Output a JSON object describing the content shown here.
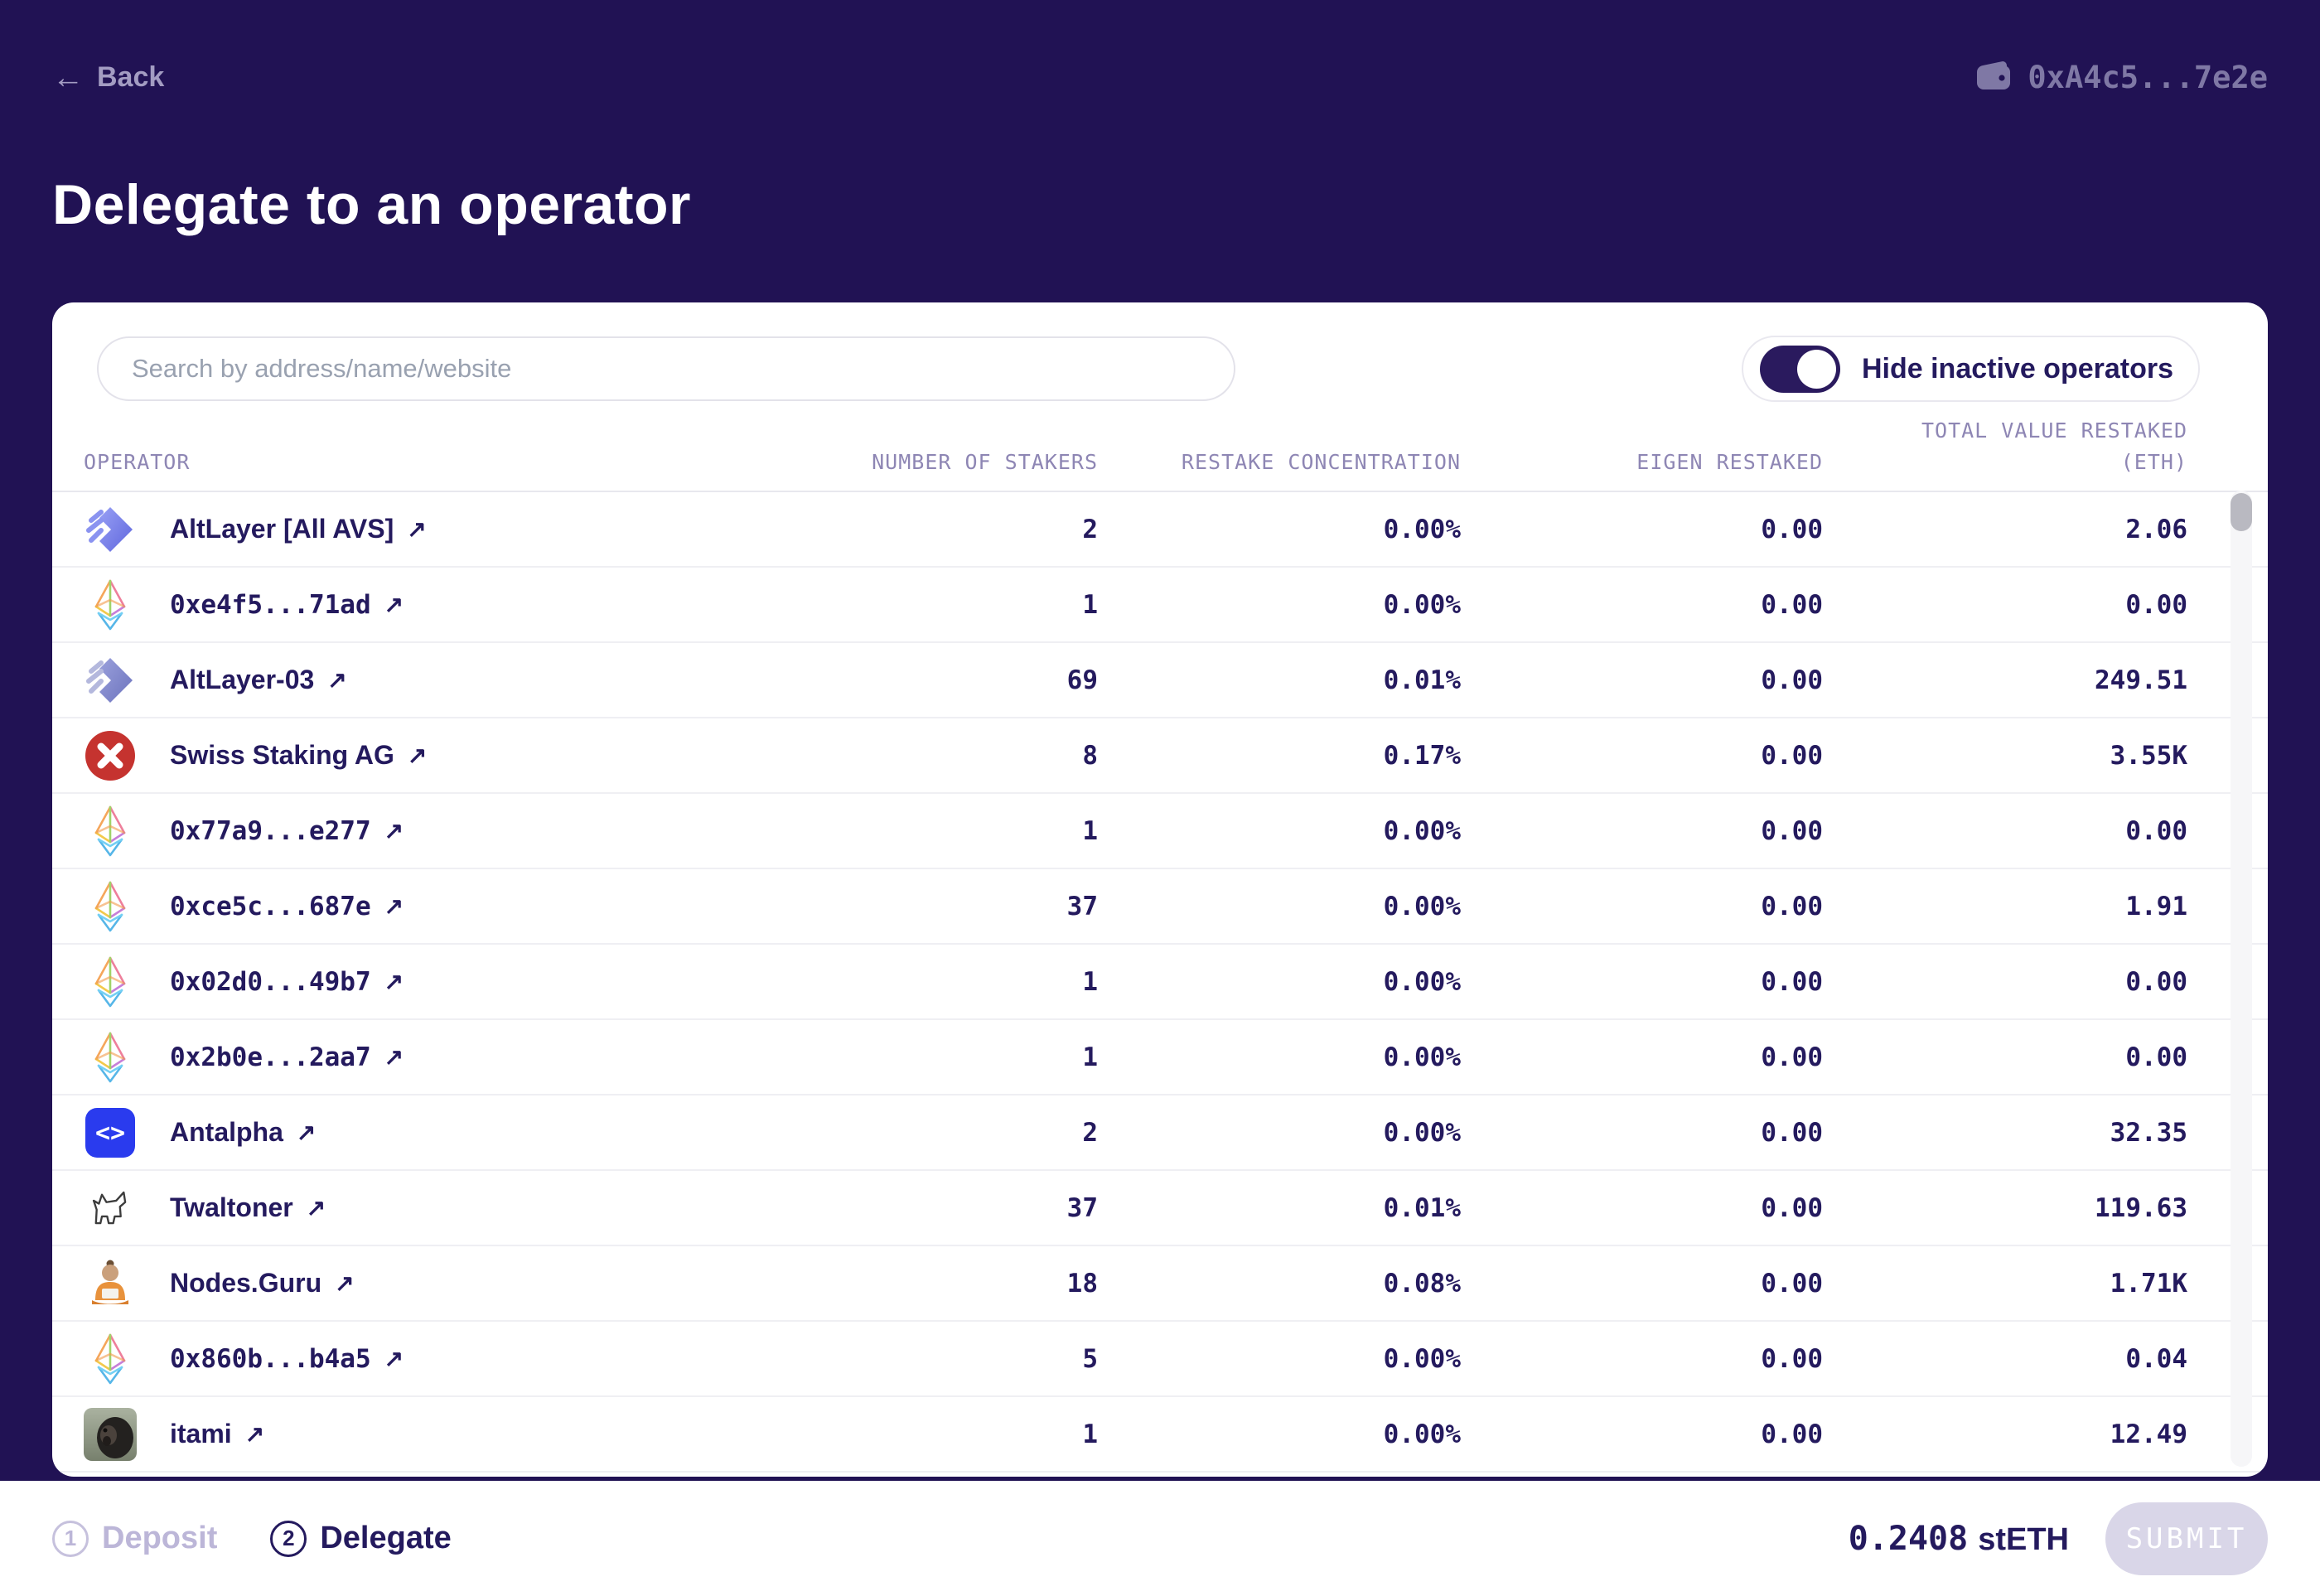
{
  "header": {
    "back_label": "Back",
    "wallet_address": "0xA4c5...7e2e"
  },
  "page_title": "Delegate to an operator",
  "panel": {
    "search_placeholder": "Search by address/name/website",
    "toggle_label": "Hide inactive operators",
    "toggle_on": true
  },
  "icons": {
    "external_link": "↗",
    "back_arrow": "←"
  },
  "table": {
    "columns": [
      {
        "label": "OPERATOR"
      },
      {
        "label": "NUMBER OF STAKERS"
      },
      {
        "label": "RESTAKE CONCENTRATION"
      },
      {
        "label": "EIGEN RESTAKED"
      },
      {
        "label": "TOTAL VALUE RESTAKED",
        "label2": "(ETH)"
      }
    ],
    "rows": [
      {
        "name": "AltLayer [All AVS]",
        "icon": "altlayer-icon",
        "mono": false,
        "stakers": "2",
        "concentration": "0.00%",
        "eigen": "0.00",
        "total": "2.06"
      },
      {
        "name": "0xe4f5...71ad",
        "icon": "eth-icon",
        "mono": true,
        "stakers": "1",
        "concentration": "0.00%",
        "eigen": "0.00",
        "total": "0.00"
      },
      {
        "name": "AltLayer-03",
        "icon": "altlayer-alt-icon",
        "mono": false,
        "stakers": "69",
        "concentration": "0.01%",
        "eigen": "0.00",
        "total": "249.51"
      },
      {
        "name": "Swiss Staking AG",
        "icon": "swiss-staking-icon",
        "mono": false,
        "stakers": "8",
        "concentration": "0.17%",
        "eigen": "0.00",
        "total": "3.55K"
      },
      {
        "name": "0x77a9...e277",
        "icon": "eth-icon",
        "mono": true,
        "stakers": "1",
        "concentration": "0.00%",
        "eigen": "0.00",
        "total": "0.00"
      },
      {
        "name": "0xce5c...687e",
        "icon": "eth-icon",
        "mono": true,
        "stakers": "37",
        "concentration": "0.00%",
        "eigen": "0.00",
        "total": "1.91"
      },
      {
        "name": "0x02d0...49b7",
        "icon": "eth-icon",
        "mono": true,
        "stakers": "1",
        "concentration": "0.00%",
        "eigen": "0.00",
        "total": "0.00"
      },
      {
        "name": "0x2b0e...2aa7",
        "icon": "eth-icon",
        "mono": true,
        "stakers": "1",
        "concentration": "0.00%",
        "eigen": "0.00",
        "total": "0.00"
      },
      {
        "name": "Antalpha",
        "icon": "antalpha-icon",
        "mono": false,
        "stakers": "2",
        "concentration": "0.00%",
        "eigen": "0.00",
        "total": "32.35"
      },
      {
        "name": "Twaltoner",
        "icon": "twaltoner-icon",
        "mono": false,
        "stakers": "37",
        "concentration": "0.01%",
        "eigen": "0.00",
        "total": "119.63"
      },
      {
        "name": "Nodes.Guru",
        "icon": "nodes-guru-icon",
        "mono": false,
        "stakers": "18",
        "concentration": "0.08%",
        "eigen": "0.00",
        "total": "1.71K"
      },
      {
        "name": "0x860b...b4a5",
        "icon": "eth-icon",
        "mono": true,
        "stakers": "5",
        "concentration": "0.00%",
        "eigen": "0.00",
        "total": "0.04"
      },
      {
        "name": "itami",
        "icon": "itami-icon",
        "mono": false,
        "stakers": "1",
        "concentration": "0.00%",
        "eigen": "0.00",
        "total": "12.49"
      }
    ]
  },
  "footer": {
    "steps": [
      {
        "num": "1",
        "label": "Deposit",
        "active": false
      },
      {
        "num": "2",
        "label": "Delegate",
        "active": true
      }
    ],
    "amount_value": "0.2408",
    "amount_unit": "stETH",
    "submit_label": "SUBMIT"
  },
  "colors": {
    "background": "#211254",
    "accent_navy": "#241a5e",
    "header_text": "#8e86b4",
    "swiss_red": "#c5332f",
    "antalpha_blue": "#2a3bee",
    "disabled_button": "#d9d6e8"
  }
}
